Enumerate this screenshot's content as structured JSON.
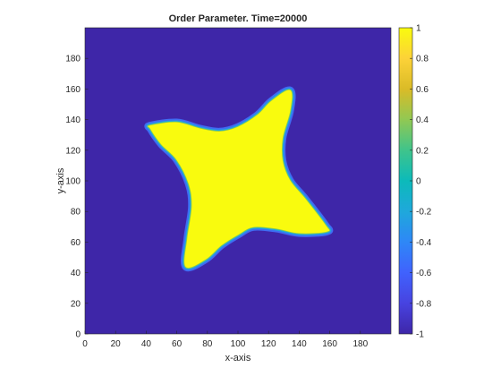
{
  "chart_data": {
    "type": "heatmap",
    "title": "Order Parameter. Time=20000",
    "xlabel": "x-axis",
    "ylabel": "y-axis",
    "xlim": [
      0,
      200
    ],
    "ylim": [
      0,
      200
    ],
    "xticks": [
      0,
      20,
      40,
      60,
      80,
      100,
      120,
      140,
      160,
      180
    ],
    "yticks": [
      0,
      20,
      40,
      60,
      80,
      100,
      120,
      140,
      160,
      180
    ],
    "colorbar": {
      "range": [
        -1,
        1
      ],
      "ticks": [
        "1",
        "0.8",
        "0.6",
        "0.4",
        "0.2",
        "0",
        "-0.2",
        "-0.4",
        "-0.6",
        "-0.8",
        "-1"
      ],
      "colormap": "parula"
    },
    "field": {
      "background_value": -1,
      "inside_value": 1,
      "shape": "four-armed star",
      "outline": [
        [
          43,
          136
        ],
        [
          60,
          138
        ],
        [
          75,
          134
        ],
        [
          88,
          132
        ],
        [
          100,
          135
        ],
        [
          113,
          143
        ],
        [
          122,
          152
        ],
        [
          134,
          159
        ],
        [
          134,
          146
        ],
        [
          129,
          128
        ],
        [
          129,
          113
        ],
        [
          134,
          100
        ],
        [
          144,
          88
        ],
        [
          157,
          71
        ],
        [
          158,
          67
        ],
        [
          140,
          66
        ],
        [
          125,
          69
        ],
        [
          110,
          70
        ],
        [
          100,
          65
        ],
        [
          89,
          58
        ],
        [
          79,
          49
        ],
        [
          66,
          44
        ],
        [
          67,
          62
        ],
        [
          70,
          83
        ],
        [
          68,
          98
        ],
        [
          60,
          114
        ],
        [
          50,
          124
        ],
        [
          43,
          134
        ]
      ]
    },
    "colors": {
      "low": "#3e26a8",
      "high": "#f9fb0e",
      "axis": "#262626"
    }
  }
}
